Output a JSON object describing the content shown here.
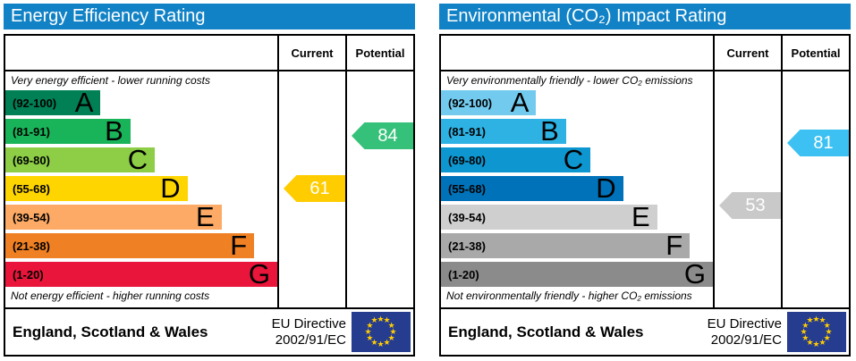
{
  "styles": {
    "header_bg": "#1282c6",
    "flag_bg": "#263c8f",
    "star_color": "#ffcc00",
    "border_color": "#000000"
  },
  "chart_data": [
    {
      "type": "bar",
      "title": "Energy Efficiency Rating",
      "columns": {
        "current": "Current",
        "potential": "Potential"
      },
      "top_caption": "Very energy efficient - lower running costs",
      "bottom_caption": "Not energy efficient - higher running costs",
      "bands": [
        {
          "letter": "A",
          "range": "(92-100)",
          "min": 92,
          "max": 100,
          "color": "#008054",
          "width_pct": 35
        },
        {
          "letter": "B",
          "range": "(81-91)",
          "min": 81,
          "max": 91,
          "color": "#19b459",
          "width_pct": 46
        },
        {
          "letter": "C",
          "range": "(69-80)",
          "min": 69,
          "max": 80,
          "color": "#8dce46",
          "width_pct": 55
        },
        {
          "letter": "D",
          "range": "(55-68)",
          "min": 55,
          "max": 68,
          "color": "#ffd500",
          "width_pct": 67
        },
        {
          "letter": "E",
          "range": "(39-54)",
          "min": 39,
          "max": 54,
          "color": "#fcaa65",
          "width_pct": 79.5
        },
        {
          "letter": "F",
          "range": "(21-38)",
          "min": 21,
          "max": 38,
          "color": "#ef8023",
          "width_pct": 91.5
        },
        {
          "letter": "G",
          "range": "(1-20)",
          "min": 1,
          "max": 20,
          "color": "#e9153b",
          "width_pct": 100
        }
      ],
      "current": {
        "value": 61,
        "color": "#ffcc00"
      },
      "potential": {
        "value": 84,
        "color": "#36c17a"
      },
      "footer": {
        "region": "England, Scotland & Wales",
        "directive_line1": "EU Directive",
        "directive_line2": "2002/91/EC"
      }
    },
    {
      "type": "bar",
      "title": "Environmental (CO₂) Impact Rating",
      "columns": {
        "current": "Current",
        "potential": "Potential"
      },
      "top_caption": "Very environmentally friendly - lower CO₂ emissions",
      "bottom_caption": "Not environmentally friendly - higher CO₂ emissions",
      "bands": [
        {
          "letter": "A",
          "range": "(92-100)",
          "min": 92,
          "max": 100,
          "color": "#72cbee",
          "width_pct": 35
        },
        {
          "letter": "B",
          "range": "(81-91)",
          "min": 81,
          "max": 91,
          "color": "#2eb2e4",
          "width_pct": 46
        },
        {
          "letter": "C",
          "range": "(69-80)",
          "min": 69,
          "max": 80,
          "color": "#0d96d0",
          "width_pct": 55
        },
        {
          "letter": "D",
          "range": "(55-68)",
          "min": 55,
          "max": 68,
          "color": "#0072b9",
          "width_pct": 67
        },
        {
          "letter": "E",
          "range": "(39-54)",
          "min": 39,
          "max": 54,
          "color": "#cfcfcf",
          "width_pct": 79.5
        },
        {
          "letter": "F",
          "range": "(21-38)",
          "min": 21,
          "max": 38,
          "color": "#a9a9a9",
          "width_pct": 91.5
        },
        {
          "letter": "G",
          "range": "(1-20)",
          "min": 1,
          "max": 20,
          "color": "#8b8b8b",
          "width_pct": 100
        }
      ],
      "current": {
        "value": 53,
        "color": "#c9c9c9"
      },
      "potential": {
        "value": 81,
        "color": "#3cc1f2"
      },
      "footer": {
        "region": "England, Scotland & Wales",
        "directive_line1": "EU Directive",
        "directive_line2": "2002/91/EC"
      }
    }
  ]
}
